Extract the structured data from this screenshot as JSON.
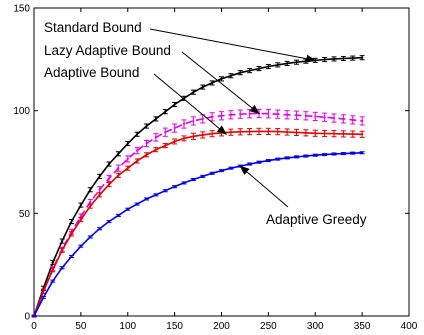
{
  "chart_data": {
    "type": "line",
    "title": "",
    "xlabel": "",
    "ylabel": "",
    "xlim": [
      0,
      400
    ],
    "ylim": [
      0,
      150
    ],
    "xticks": [
      0,
      50,
      100,
      150,
      200,
      250,
      300,
      350,
      400
    ],
    "yticks": [
      0,
      50,
      100,
      150
    ],
    "grid": false,
    "x": [
      0,
      10,
      20,
      30,
      40,
      50,
      60,
      70,
      80,
      90,
      100,
      110,
      120,
      130,
      140,
      150,
      160,
      170,
      180,
      190,
      200,
      210,
      220,
      230,
      240,
      250,
      260,
      270,
      280,
      290,
      300,
      310,
      320,
      330,
      340,
      350
    ],
    "series": [
      {
        "name": "Standard Bound",
        "color": "#000000",
        "dashed": false,
        "values": [
          0,
          13.5,
          26,
          36.5,
          46,
          54,
          61.5,
          68,
          74,
          79,
          84,
          88.5,
          92.5,
          96,
          99.5,
          103,
          106,
          109,
          111.5,
          113.5,
          115.5,
          117,
          118.5,
          119.5,
          120.5,
          121.5,
          122.3,
          123,
          123.6,
          124.1,
          124.5,
          124.9,
          125.2,
          125.4,
          125.6,
          125.8
        ],
        "err": [
          0.5,
          1,
          1,
          1,
          1,
          1,
          1,
          1,
          1,
          1,
          1,
          1,
          1,
          1,
          1,
          1,
          1,
          1,
          1,
          1,
          1,
          1,
          1,
          1,
          1,
          1,
          1,
          1,
          1,
          1,
          1,
          1,
          1,
          1,
          1,
          1
        ]
      },
      {
        "name": "Lazy Adaptive Bound",
        "color": "#e600e6",
        "dashed": true,
        "values": [
          0,
          12,
          23,
          32.5,
          41,
          48.5,
          55.5,
          61.5,
          67,
          72,
          76.5,
          80.5,
          84,
          87,
          89.5,
          91.5,
          93.5,
          95,
          96,
          97,
          97.5,
          98,
          98.3,
          98.5,
          98.6,
          98.5,
          98.3,
          98,
          97.8,
          97.5,
          97.2,
          96.8,
          96.4,
          96,
          95.5,
          95
        ],
        "err": [
          0.5,
          1,
          1,
          1,
          1.2,
          1.2,
          1.2,
          1.5,
          1.5,
          1.5,
          1.5,
          1.5,
          1.5,
          1.8,
          2,
          2,
          2,
          2,
          2,
          2,
          2,
          2,
          2,
          2,
          2,
          2,
          2,
          2,
          2,
          2,
          2,
          2,
          2,
          2,
          2,
          2
        ]
      },
      {
        "name": "Adaptive Bound",
        "color": "#e60000",
        "dashed": false,
        "values": [
          0,
          12,
          22.5,
          32,
          40,
          47,
          53.5,
          59,
          64,
          68.5,
          72,
          75.5,
          78.5,
          81,
          83,
          85,
          86.5,
          87.5,
          88.2,
          88.8,
          89.2,
          89.5,
          89.7,
          89.8,
          89.9,
          89.9,
          89.8,
          89.6,
          89.4,
          89.2,
          89,
          88.9,
          88.8,
          88.7,
          88.6,
          88.5
        ],
        "err": [
          0.5,
          1,
          1,
          1,
          1,
          1,
          1,
          1,
          1,
          1,
          1,
          1,
          1,
          1,
          1,
          1.2,
          1.2,
          1.5,
          1.5,
          1.5,
          1.5,
          1.5,
          1.5,
          1.5,
          1.5,
          1.5,
          1.5,
          1.5,
          1.5,
          1.5,
          1.5,
          1.5,
          1.5,
          1.5,
          1.5,
          1.5
        ]
      },
      {
        "name": "Adaptive Greedy",
        "color": "#0000e6",
        "dashed": false,
        "values": [
          0,
          9,
          17,
          23.5,
          29,
          34,
          38.5,
          42.5,
          46,
          49,
          52,
          54.5,
          57,
          59,
          61,
          63,
          64.8,
          66.5,
          68,
          69.5,
          70.8,
          72,
          73,
          74,
          74.9,
          75.7,
          76.4,
          77,
          77.5,
          77.9,
          78.3,
          78.6,
          78.9,
          79.1,
          79.3,
          79.5
        ],
        "err": [
          0.3,
          0.5,
          0.5,
          0.5,
          0.5,
          0.5,
          0.5,
          0.5,
          0.5,
          0.5,
          0.5,
          0.5,
          0.5,
          0.5,
          0.5,
          0.5,
          0.5,
          0.5,
          0.5,
          0.5,
          0.5,
          0.5,
          0.5,
          0.5,
          0.5,
          0.5,
          0.5,
          0.5,
          0.5,
          0.5,
          0.5,
          0.5,
          0.5,
          0.5,
          0.5,
          0.5
        ]
      }
    ],
    "annotations": [
      {
        "text": "Standard Bound",
        "series": 0,
        "arrow_to_x": 300
      },
      {
        "text": "Lazy Adaptive Bound",
        "series": 1,
        "arrow_to_x": 240
      },
      {
        "text": "Adaptive Bound",
        "series": 2,
        "arrow_to_x": 205
      },
      {
        "text": "Adaptive Greedy",
        "series": 3,
        "arrow_to_x": 220
      }
    ]
  }
}
